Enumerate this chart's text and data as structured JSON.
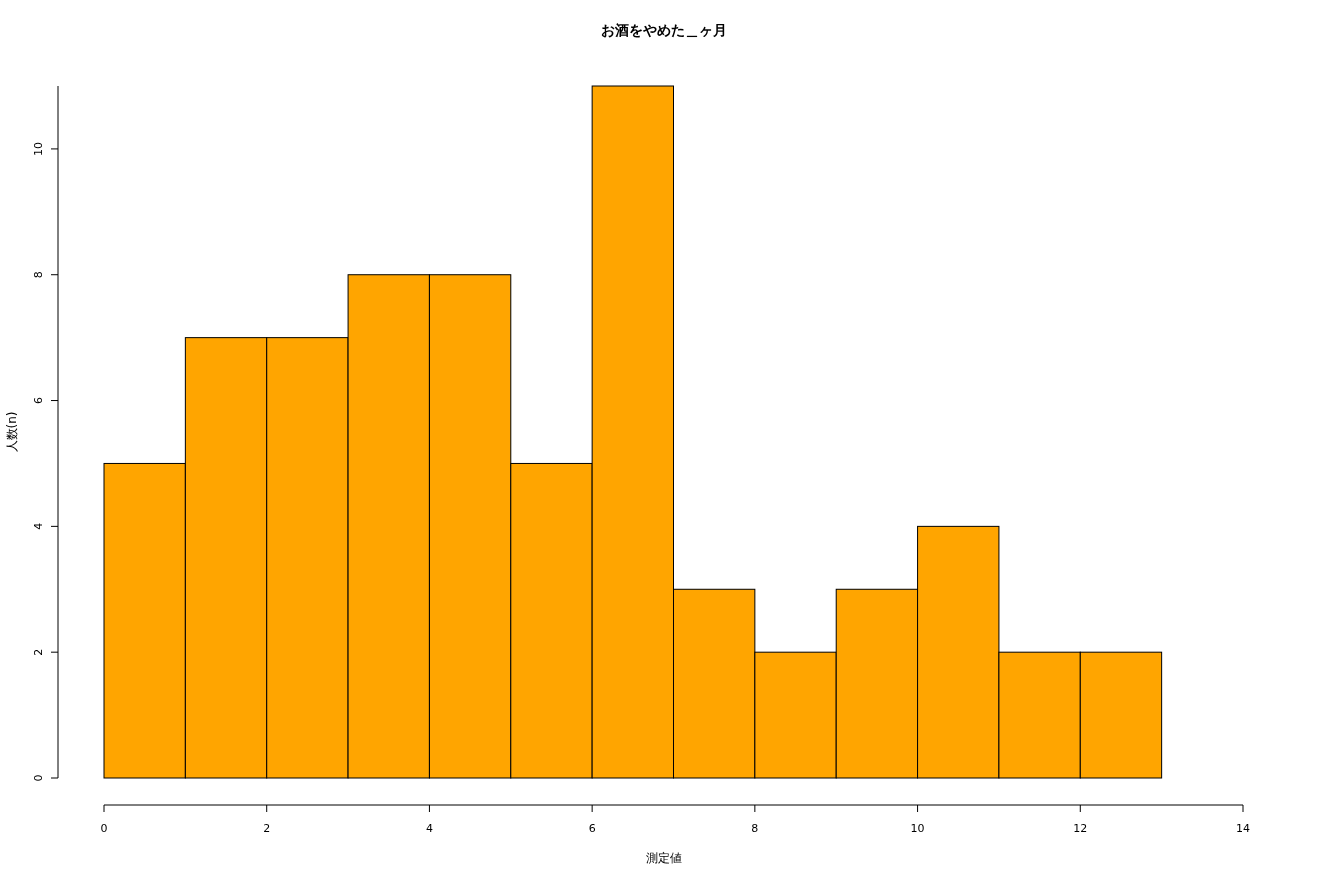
{
  "chart_data": {
    "type": "histogram",
    "title": "お酒をやめた＿ヶ月",
    "xlabel": "測定値",
    "ylabel": "人数(n)",
    "bins": [
      0,
      1,
      2,
      3,
      4,
      5,
      6,
      7,
      8,
      9,
      10,
      11,
      12,
      13
    ],
    "values": [
      5,
      7,
      7,
      8,
      8,
      5,
      11,
      3,
      2,
      3,
      4,
      2,
      2
    ],
    "color": "#ffa500",
    "xlim": [
      0,
      14
    ],
    "xticks": [
      0,
      2,
      4,
      6,
      8,
      10,
      12,
      14
    ],
    "ylim": [
      0,
      11
    ],
    "yticks": [
      0,
      2,
      4,
      6,
      8,
      10
    ]
  }
}
